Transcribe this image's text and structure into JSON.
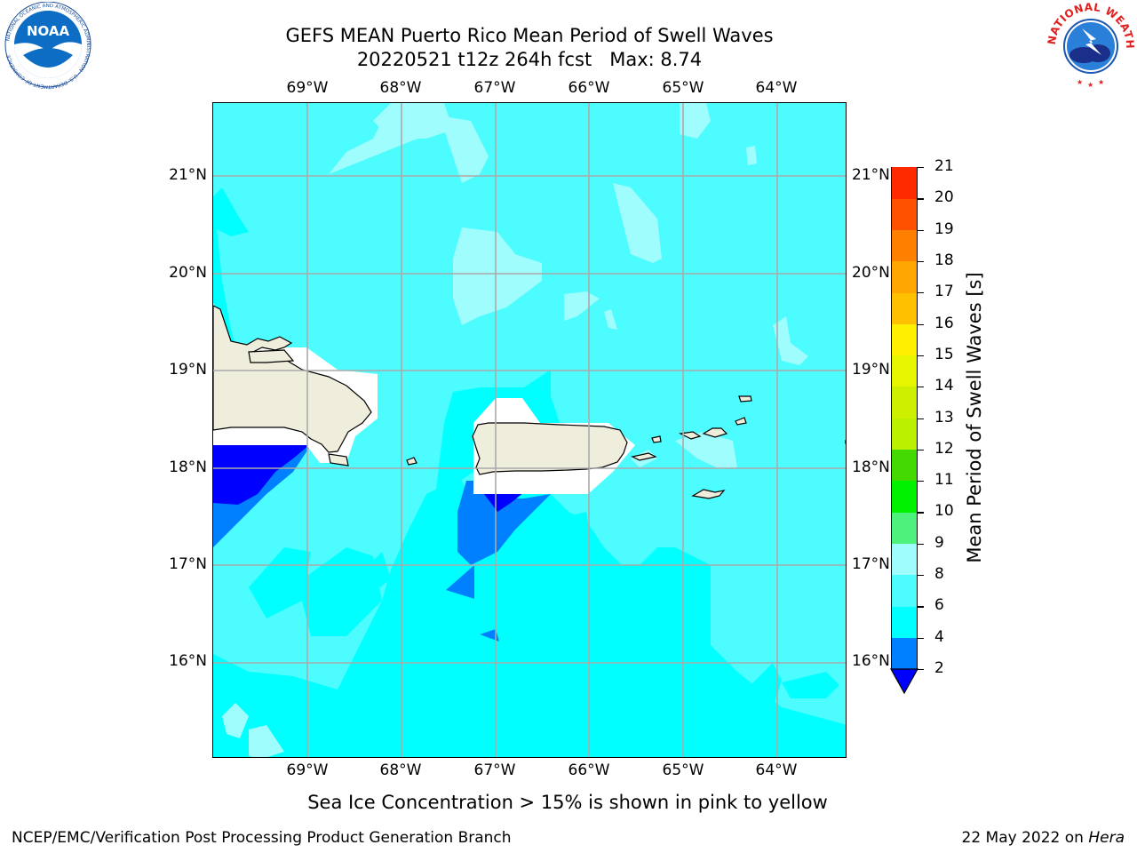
{
  "title": {
    "line1": "GEFS MEAN Puerto Rico Mean Period of Swell Waves",
    "line2": "20220521 t12z 264h fcst   Max: 8.74"
  },
  "map": {
    "lon_labels": [
      "69°W",
      "68°W",
      "67°W",
      "66°W",
      "65°W",
      "64°W"
    ],
    "lat_labels": [
      "21°N",
      "20°N",
      "19°N",
      "18°N",
      "17°N",
      "16°N"
    ],
    "lon_range": [
      -70.0,
      -63.25
    ],
    "lat_range": [
      15.0,
      21.75
    ],
    "gridline_color": "#aaaaaa",
    "land_color": "#efeddc",
    "mask_color": "#ffffff",
    "regions": [
      "Hispaniola",
      "Puerto Rico",
      "Virgin Islands",
      "Mona Island",
      "Vieques"
    ]
  },
  "colorbar": {
    "title": "Mean Period of Swell Waves [s]",
    "tick_labels": [
      "2",
      "4",
      "6",
      "8",
      "9",
      "10",
      "11",
      "12",
      "13",
      "14",
      "15",
      "16",
      "17",
      "18",
      "19",
      "20",
      "21"
    ],
    "bins": [
      {
        "from": 2,
        "to": 4,
        "color": "#0080ff"
      },
      {
        "from": 4,
        "to": 6,
        "color": "#00ffff"
      },
      {
        "from": 6,
        "to": 8,
        "color": "#4dfcff"
      },
      {
        "from": 8,
        "to": 9,
        "color": "#a0fdfd"
      },
      {
        "from": 9,
        "to": 10,
        "color": "#4cf27c"
      },
      {
        "from": 10,
        "to": 11,
        "color": "#00f200"
      },
      {
        "from": 11,
        "to": 12,
        "color": "#44d900"
      },
      {
        "from": 12,
        "to": 13,
        "color": "#bbf000"
      },
      {
        "from": 13,
        "to": 14,
        "color": "#ccf000"
      },
      {
        "from": 14,
        "to": 15,
        "color": "#e6f500"
      },
      {
        "from": 15,
        "to": 16,
        "color": "#fff000"
      },
      {
        "from": 16,
        "to": 17,
        "color": "#ffc000"
      },
      {
        "from": 17,
        "to": 18,
        "color": "#ffa600"
      },
      {
        "from": 18,
        "to": 19,
        "color": "#ff8000"
      },
      {
        "from": 19,
        "to": 20,
        "color": "#ff5000"
      },
      {
        "from": 20,
        "to": 21,
        "color": "#ff2a00"
      },
      {
        "from": 21,
        "to": 22,
        "color": "#ff0000"
      }
    ],
    "under_color": "#0000ff"
  },
  "footnote": "Sea Ice Concentration > 15% is shown in pink to yellow",
  "footer": {
    "left": "NCEP/EMC/Verification Post Processing Product Generation Branch",
    "right_prefix": "22 May 2022 on ",
    "right_host": "Hera"
  },
  "logos": {
    "left": {
      "name": "NOAA",
      "ring_text": "NATIONAL OCEANIC AND ATMOSPHERIC ADMINISTRATION · U.S. DEPARTMENT OF COMMERCE"
    },
    "right": {
      "name": "NATIONAL WEATHER SERVICE"
    }
  }
}
